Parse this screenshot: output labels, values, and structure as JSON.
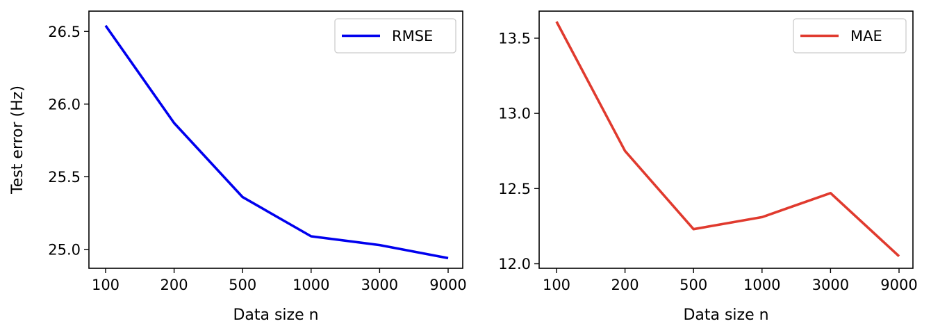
{
  "chart_data": [
    {
      "type": "line",
      "xlabel": "Data size n",
      "ylabel": "Test error (Hz)",
      "categories": [
        "100",
        "200",
        "500",
        "1000",
        "3000",
        "9000"
      ],
      "series": [
        {
          "name": "RMSE",
          "color": "#0000ee",
          "values": [
            26.54,
            25.87,
            25.36,
            25.09,
            25.03,
            24.94
          ]
        }
      ],
      "ylim": [
        24.87,
        26.64
      ],
      "yticks": [
        "25.0",
        "25.5",
        "26.0",
        "26.5"
      ],
      "legend_position": "top-right",
      "grid": false
    },
    {
      "type": "line",
      "xlabel": "Data size n",
      "ylabel": "",
      "categories": [
        "100",
        "200",
        "500",
        "1000",
        "3000",
        "9000"
      ],
      "series": [
        {
          "name": "MAE",
          "color": "#e03a2e",
          "values": [
            13.61,
            12.75,
            12.23,
            12.31,
            12.47,
            12.05
          ]
        }
      ],
      "ylim": [
        11.97,
        13.68
      ],
      "yticks": [
        "12.0",
        "12.5",
        "13.0",
        "13.5"
      ],
      "legend_position": "top-right",
      "grid": false
    }
  ]
}
